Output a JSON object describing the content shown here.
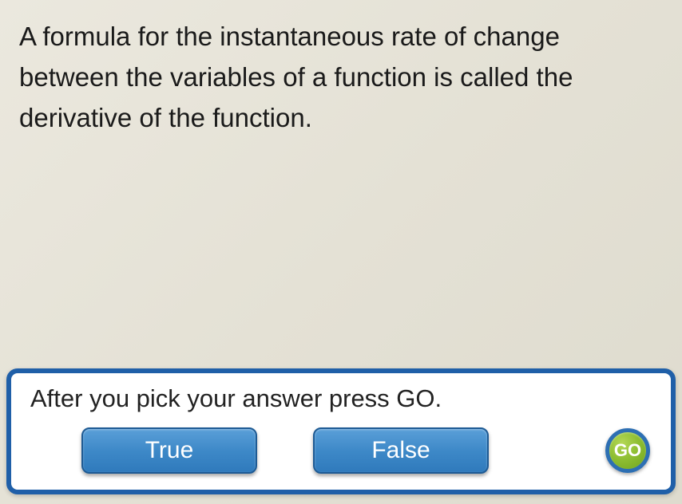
{
  "question": {
    "text": "A formula for the instantaneous rate of change between the variables of a function is called the derivative of the function."
  },
  "panel": {
    "instruction": "After you pick your answer press GO.",
    "true_label": "True",
    "false_label": "False",
    "go_label": "GO"
  },
  "styling": {
    "background_gradient": [
      "#ebe8de",
      "#e4e1d5",
      "#dedbce"
    ],
    "panel_border_color": "#1f5fa8",
    "panel_background": "#ffffff",
    "button_gradient": [
      "#5a9fd8",
      "#3e89c8",
      "#2f7abc"
    ],
    "button_border": "#1d5a94",
    "button_text_color": "#ffffff",
    "go_gradient": [
      "#b4d756",
      "#8fbf33",
      "#6fa31e"
    ],
    "go_border": "#2d6fb3",
    "question_fontsize": 33,
    "instruction_fontsize": 31,
    "button_fontsize": 30,
    "go_fontsize": 22,
    "font_family": "Comic Sans MS"
  }
}
